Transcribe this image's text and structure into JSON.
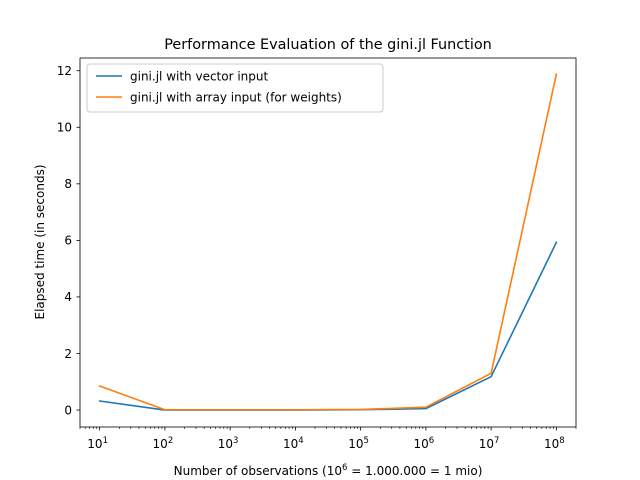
{
  "chart_data": {
    "type": "line",
    "title": "Performance Evaluation of the gini.jl Function",
    "xlabel_prefix": "Number of observations (10",
    "xlabel_sup": "6",
    "xlabel_suffix": " = 1.000.000 = 1 mio)",
    "ylabel": "Elapsed time (in seconds)",
    "x_scale": "log",
    "x": [
      10,
      100,
      1000,
      10000,
      100000,
      1000000,
      10000000,
      100000000
    ],
    "x_ticks": [
      {
        "base": "10",
        "exp": "1",
        "value": 10
      },
      {
        "base": "10",
        "exp": "2",
        "value": 100
      },
      {
        "base": "10",
        "exp": "3",
        "value": 1000
      },
      {
        "base": "10",
        "exp": "4",
        "value": 10000
      },
      {
        "base": "10",
        "exp": "5",
        "value": 100000
      },
      {
        "base": "10",
        "exp": "6",
        "value": 1000000
      },
      {
        "base": "10",
        "exp": "7",
        "value": 10000000
      },
      {
        "base": "10",
        "exp": "8",
        "value": 100000000
      }
    ],
    "xlim": [
      5,
      200000000
    ],
    "ylim": [
      -0.6,
      12.45
    ],
    "y_ticks": [
      0,
      2,
      4,
      6,
      8,
      10,
      12
    ],
    "grid": false,
    "legend_position": "top-left",
    "series": [
      {
        "name": "gini.jl with vector input",
        "color": "#1f77b4",
        "values": [
          0.32,
          0.0,
          0.0,
          0.0,
          0.01,
          0.05,
          1.18,
          5.93
        ]
      },
      {
        "name": "gini.jl with array input (for weights)",
        "color": "#ff7f0e",
        "values": [
          0.85,
          0.01,
          0.01,
          0.01,
          0.02,
          0.1,
          1.3,
          11.88
        ]
      }
    ]
  }
}
